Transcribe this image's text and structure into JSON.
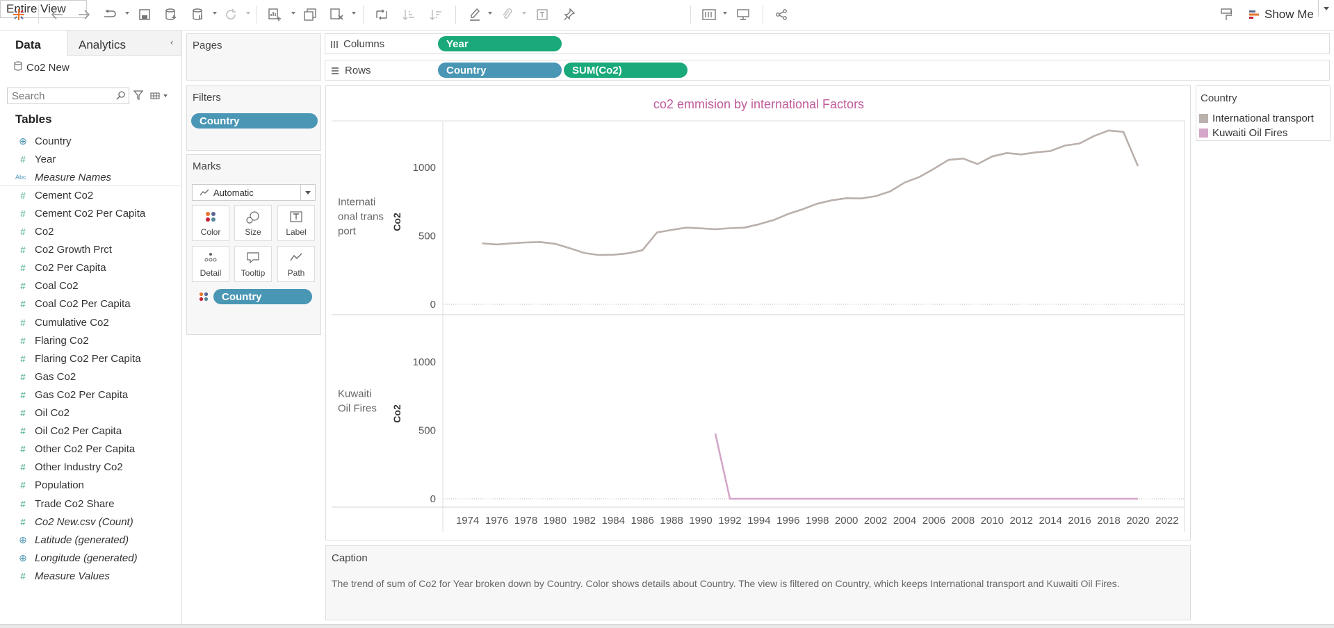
{
  "toolbar": {
    "fit_label": "Entire View",
    "show_me_label": "Show Me"
  },
  "data_pane": {
    "tab_data": "Data",
    "tab_analytics": "Analytics",
    "datasource": "Co2 New",
    "search_placeholder": "Search",
    "tables_heading": "Tables",
    "fields": [
      {
        "name": "Country",
        "icon": "globe-icon",
        "italic": false
      },
      {
        "name": "Year",
        "icon": "number-icon",
        "italic": false
      },
      {
        "name": "Measure Names",
        "icon": "abc-icon",
        "italic": true
      },
      {
        "name": "Cement Co2",
        "icon": "number-icon",
        "italic": false
      },
      {
        "name": "Cement Co2 Per Capita",
        "icon": "number-icon",
        "italic": false
      },
      {
        "name": "Co2",
        "icon": "number-icon",
        "italic": false
      },
      {
        "name": "Co2 Growth Prct",
        "icon": "number-icon",
        "italic": false
      },
      {
        "name": "Co2 Per Capita",
        "icon": "number-icon",
        "italic": false
      },
      {
        "name": "Coal Co2",
        "icon": "number-icon",
        "italic": false
      },
      {
        "name": "Coal Co2 Per Capita",
        "icon": "number-icon",
        "italic": false
      },
      {
        "name": "Cumulative Co2",
        "icon": "number-icon",
        "italic": false
      },
      {
        "name": "Flaring Co2",
        "icon": "number-icon",
        "italic": false
      },
      {
        "name": "Flaring Co2 Per Capita",
        "icon": "number-icon",
        "italic": false
      },
      {
        "name": "Gas Co2",
        "icon": "number-icon",
        "italic": false
      },
      {
        "name": "Gas Co2 Per Capita",
        "icon": "number-icon",
        "italic": false
      },
      {
        "name": "Oil Co2",
        "icon": "number-icon",
        "italic": false
      },
      {
        "name": "Oil Co2 Per Capita",
        "icon": "number-icon",
        "italic": false
      },
      {
        "name": "Other Co2 Per Capita",
        "icon": "number-icon",
        "italic": false
      },
      {
        "name": "Other Industry Co2",
        "icon": "number-icon",
        "italic": false
      },
      {
        "name": "Population",
        "icon": "number-icon",
        "italic": false
      },
      {
        "name": "Trade Co2 Share",
        "icon": "number-icon",
        "italic": false
      },
      {
        "name": "Co2 New.csv (Count)",
        "icon": "number-icon",
        "italic": true
      },
      {
        "name": "Latitude (generated)",
        "icon": "globe-icon",
        "italic": true
      },
      {
        "name": "Longitude (generated)",
        "icon": "globe-icon",
        "italic": true
      },
      {
        "name": "Measure Values",
        "icon": "number-icon",
        "italic": true
      }
    ]
  },
  "pages": {
    "title": "Pages"
  },
  "filters": {
    "title": "Filters",
    "pill": "Country"
  },
  "marks": {
    "title": "Marks",
    "type": "Automatic",
    "buttons": {
      "color": "Color",
      "size": "Size",
      "label": "Label",
      "detail": "Detail",
      "tooltip": "Tooltip",
      "path": "Path"
    },
    "pill": "Country"
  },
  "shelves": {
    "columns_label": "Columns",
    "columns_pill": "Year",
    "rows_label": "Rows",
    "rows_pills": [
      "Country",
      "SUM(Co2)"
    ]
  },
  "legend": {
    "title": "Country",
    "items": [
      {
        "label": "International transport",
        "color": "#bab0ac"
      },
      {
        "label": "Kuwaiti Oil Fires",
        "color": "#d4a6c8"
      }
    ]
  },
  "caption": {
    "title": "Caption",
    "text": "The trend of sum of Co2 for Year broken down by Country.  Color shows details about Country. The view is filtered on Country, which keeps International transport and Kuwaiti Oil Fires."
  },
  "chart_data": {
    "type": "line",
    "title": "co2 emmision by international Factors",
    "xlabel": "",
    "ylabel": "Co2",
    "x_ticks": [
      1974,
      1976,
      1978,
      1980,
      1982,
      1984,
      1986,
      1988,
      1990,
      1992,
      1994,
      1996,
      1998,
      2000,
      2002,
      2004,
      2006,
      2008,
      2010,
      2012,
      2014,
      2016,
      2018,
      2020,
      2022
    ],
    "xlim": [
      1972.3,
      2023.2
    ],
    "ylim": [
      0,
      1320
    ],
    "y_ticks": [
      0,
      500,
      1000
    ],
    "panes": [
      {
        "row_label": "International transport",
        "color": "#bab0ac",
        "x": [
          1975,
          1976,
          1977,
          1978,
          1979,
          1980,
          1981,
          1982,
          1983,
          1984,
          1985,
          1986,
          1987,
          1988,
          1989,
          1990,
          1991,
          1992,
          1993,
          1994,
          1995,
          1996,
          1997,
          1998,
          1999,
          2000,
          2001,
          2002,
          2003,
          2004,
          2005,
          2006,
          2007,
          2008,
          2009,
          2010,
          2011,
          2012,
          2013,
          2014,
          2015,
          2016,
          2017,
          2018,
          2019,
          2020
        ],
        "y": [
          445,
          437,
          445,
          452,
          455,
          442,
          410,
          375,
          360,
          362,
          372,
          395,
          525,
          543,
          560,
          555,
          548,
          556,
          560,
          585,
          615,
          660,
          695,
          735,
          760,
          775,
          773,
          790,
          825,
          890,
          930,
          990,
          1055,
          1065,
          1025,
          1080,
          1105,
          1095,
          1110,
          1120,
          1160,
          1175,
          1230,
          1270,
          1260,
          1010
        ]
      },
      {
        "row_label": "Kuwaiti Oil Fires",
        "color": "#d4a6c8",
        "x": [
          1991,
          1992,
          1993,
          1994,
          1995,
          1996,
          1997,
          1998,
          1999,
          2000,
          2001,
          2002,
          2003,
          2004,
          2005,
          2006,
          2007,
          2008,
          2009,
          2010,
          2011,
          2012,
          2013,
          2014,
          2015,
          2016,
          2017,
          2018,
          2019,
          2020
        ],
        "y": [
          477,
          0,
          0,
          0,
          0,
          0,
          0,
          0,
          0,
          0,
          0,
          0,
          0,
          0,
          0,
          0,
          0,
          0,
          0,
          0,
          0,
          0,
          0,
          0,
          0,
          0,
          0,
          0,
          0,
          0
        ]
      }
    ],
    "grid": false,
    "legend": "right"
  }
}
